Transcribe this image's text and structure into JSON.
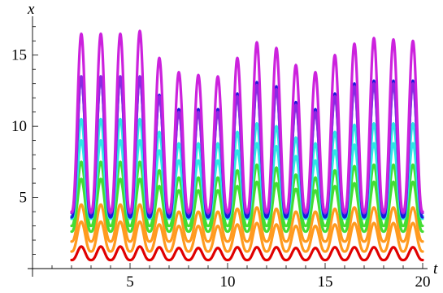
{
  "chart_data": {
    "type": "line",
    "title": "",
    "xlabel": "t",
    "ylabel": "x",
    "xlim": [
      0,
      20
    ],
    "ylim": [
      0,
      17.5
    ],
    "x_ticks": [
      5,
      10,
      15,
      20
    ],
    "y_ticks": [
      5,
      10,
      15
    ],
    "x_tick_labels": [
      "5",
      "10",
      "15",
      "20"
    ],
    "y_tick_labels": [
      "5",
      "10",
      "15"
    ],
    "grid": false,
    "legend": "none",
    "t_start": 2,
    "t_end": 20,
    "series": [
      {
        "color": "#e00000",
        "period": 1.0,
        "peak_times": [
          2.5,
          3.5,
          4.5,
          5.5,
          6.5,
          7.5,
          8.5,
          9.5,
          10.5,
          11.5,
          12.5,
          13.5,
          14.5,
          15.5,
          16.5,
          17.5,
          18.5,
          19.5
        ],
        "peak_values": [
          1.55,
          1.55,
          1.55,
          1.55,
          1.5,
          1.45,
          1.45,
          1.45,
          1.5,
          1.5,
          1.5,
          1.45,
          1.45,
          1.5,
          1.5,
          1.5,
          1.5,
          1.5
        ],
        "trough_values": [
          0.6,
          0.6,
          0.6,
          0.6,
          0.6,
          0.6,
          0.6,
          0.6,
          0.6,
          0.6,
          0.6,
          0.6,
          0.6,
          0.6,
          0.6,
          0.6,
          0.6,
          0.6
        ]
      },
      {
        "color": "#ff9a1f",
        "period": 1.0,
        "peak_times": [
          2.5,
          3.5,
          4.5,
          5.5,
          6.5,
          7.5,
          8.5,
          9.5,
          10.5,
          11.5,
          12.5,
          13.5,
          14.5,
          15.5,
          16.5,
          17.5,
          18.5,
          19.5
        ],
        "peak_values": [
          3.3,
          3.3,
          3.3,
          3.3,
          3.1,
          3.0,
          3.0,
          3.0,
          3.1,
          3.2,
          3.1,
          3.0,
          3.0,
          3.1,
          3.2,
          3.2,
          3.2,
          3.2
        ],
        "trough_values": [
          1.2,
          1.2,
          1.2,
          1.2,
          1.2,
          1.2,
          1.2,
          1.2,
          1.2,
          1.2,
          1.2,
          1.2,
          1.2,
          1.2,
          1.2,
          1.2,
          1.2,
          1.2
        ]
      },
      {
        "color": "#ff9a1f",
        "period": 1.0,
        "peak_times": [
          2.5,
          3.5,
          4.5,
          5.5,
          6.5,
          7.5,
          8.5,
          9.5,
          10.5,
          11.5,
          12.5,
          13.5,
          14.5,
          15.5,
          16.5,
          17.5,
          18.5,
          19.5
        ],
        "peak_values": [
          4.5,
          4.5,
          4.5,
          4.5,
          4.2,
          4.0,
          4.0,
          4.0,
          4.2,
          4.3,
          4.2,
          4.0,
          4.0,
          4.2,
          4.3,
          4.3,
          4.3,
          4.3
        ],
        "trough_values": [
          1.9,
          1.9,
          1.9,
          1.9,
          1.9,
          1.9,
          1.9,
          1.9,
          1.9,
          1.9,
          1.9,
          1.9,
          1.9,
          1.9,
          1.9,
          1.9,
          1.9,
          1.9
        ]
      },
      {
        "color": "#44dd33",
        "period": 1.0,
        "peak_times": [
          2.5,
          3.5,
          4.5,
          5.5,
          6.5,
          7.5,
          8.5,
          9.5,
          10.5,
          11.5,
          12.5,
          13.5,
          14.5,
          15.5,
          16.5,
          17.5,
          18.5,
          19.5
        ],
        "peak_values": [
          6.3,
          6.3,
          6.3,
          6.3,
          5.8,
          5.5,
          5.5,
          5.5,
          5.8,
          6.1,
          6.0,
          5.6,
          5.5,
          5.8,
          6.0,
          6.1,
          6.1,
          6.1
        ],
        "trough_values": [
          2.6,
          2.6,
          2.6,
          2.6,
          2.6,
          2.6,
          2.6,
          2.6,
          2.6,
          2.6,
          2.6,
          2.6,
          2.6,
          2.6,
          2.6,
          2.6,
          2.6,
          2.6
        ]
      },
      {
        "color": "#44dd33",
        "period": 1.0,
        "peak_times": [
          2.5,
          3.5,
          4.5,
          5.5,
          6.5,
          7.5,
          8.5,
          9.5,
          10.5,
          11.5,
          12.5,
          13.5,
          14.5,
          15.5,
          16.5,
          17.5,
          18.5,
          19.5
        ],
        "peak_values": [
          7.5,
          7.5,
          7.5,
          7.5,
          6.9,
          6.4,
          6.4,
          6.4,
          6.9,
          7.3,
          7.1,
          6.6,
          6.4,
          6.9,
          7.2,
          7.3,
          7.3,
          7.3
        ],
        "trough_values": [
          3.0,
          3.0,
          3.0,
          3.0,
          3.0,
          3.0,
          3.0,
          3.0,
          3.0,
          3.0,
          3.0,
          3.0,
          3.0,
          3.0,
          3.0,
          3.0,
          3.0,
          3.0
        ]
      },
      {
        "color": "#2ee6e6",
        "period": 1.0,
        "peak_times": [
          2.5,
          3.5,
          4.5,
          5.5,
          6.5,
          7.5,
          8.5,
          9.5,
          10.5,
          11.5,
          12.5,
          13.5,
          14.5,
          15.5,
          16.5,
          17.5,
          18.5,
          19.5
        ],
        "peak_values": [
          9.0,
          9.0,
          9.0,
          9.0,
          8.3,
          7.6,
          7.6,
          7.6,
          8.3,
          8.8,
          8.6,
          7.9,
          7.6,
          8.3,
          8.7,
          8.8,
          8.8,
          8.8
        ],
        "trough_values": [
          3.5,
          3.5,
          3.5,
          3.5,
          3.5,
          3.5,
          3.5,
          3.5,
          3.5,
          3.5,
          3.5,
          3.5,
          3.5,
          3.5,
          3.5,
          3.5,
          3.5,
          3.5
        ]
      },
      {
        "color": "#2ee6e6",
        "period": 1.0,
        "peak_times": [
          2.5,
          3.5,
          4.5,
          5.5,
          6.5,
          7.5,
          8.5,
          9.5,
          10.5,
          11.5,
          12.5,
          13.5,
          14.5,
          15.5,
          16.5,
          17.5,
          18.5,
          19.5
        ],
        "peak_values": [
          10.5,
          10.5,
          10.5,
          10.5,
          9.6,
          8.8,
          8.8,
          8.8,
          9.6,
          10.2,
          10.0,
          9.2,
          8.8,
          9.6,
          10.1,
          10.2,
          10.2,
          10.2
        ],
        "trough_values": [
          3.7,
          3.7,
          3.7,
          3.7,
          3.7,
          3.7,
          3.7,
          3.7,
          3.7,
          3.7,
          3.7,
          3.7,
          3.7,
          3.7,
          3.7,
          3.7,
          3.7,
          3.7
        ]
      },
      {
        "color": "#1a1adc",
        "period": 1.0,
        "peak_times": [
          2.5,
          3.5,
          4.5,
          5.5,
          6.5,
          7.5,
          8.5,
          9.5,
          10.5,
          11.5,
          12.5,
          13.5,
          14.5,
          15.5,
          16.5,
          17.5,
          18.5,
          19.5
        ],
        "peak_values": [
          13.5,
          13.5,
          13.5,
          13.5,
          12.2,
          11.2,
          11.2,
          11.2,
          12.3,
          13.1,
          12.8,
          11.7,
          11.2,
          12.3,
          13.0,
          13.2,
          13.2,
          13.2
        ],
        "trough_values": [
          3.6,
          3.6,
          3.6,
          3.6,
          3.6,
          3.6,
          3.6,
          3.6,
          3.6,
          3.6,
          3.6,
          3.6,
          3.6,
          3.6,
          3.6,
          3.6,
          3.6,
          3.6
        ]
      },
      {
        "color": "#8a2be2",
        "period": 1.0,
        "peak_times": [
          2.5,
          3.5,
          4.5,
          5.5,
          6.5,
          7.5,
          8.5,
          9.5,
          10.5,
          11.5,
          12.5,
          13.5,
          14.5,
          15.5,
          16.5,
          17.5,
          18.5,
          19.5
        ],
        "peak_values": [
          13.5,
          13.5,
          13.5,
          13.5,
          12.1,
          11.0,
          11.0,
          11.0,
          12.1,
          12.9,
          12.6,
          11.5,
          11.0,
          12.1,
          12.8,
          13.0,
          13.0,
          13.0
        ],
        "trough_values": [
          3.9,
          3.9,
          3.9,
          3.9,
          3.9,
          3.9,
          3.9,
          3.9,
          3.9,
          3.9,
          3.9,
          3.9,
          3.9,
          3.9,
          3.9,
          3.9,
          3.9,
          3.9
        ]
      },
      {
        "color": "#cc22dd",
        "period": 1.0,
        "peak_times": [
          2.5,
          3.5,
          4.5,
          5.5,
          6.5,
          7.5,
          8.5,
          9.5,
          10.5,
          11.5,
          12.5,
          13.5,
          14.5,
          15.5,
          16.5,
          17.5,
          18.5,
          19.5
        ],
        "peak_values": [
          16.5,
          16.5,
          16.5,
          16.7,
          14.8,
          13.8,
          13.6,
          13.5,
          14.8,
          15.9,
          15.5,
          14.3,
          13.8,
          15.0,
          15.8,
          16.2,
          16.1,
          16.0
        ],
        "trough_values": [
          4.0,
          4.0,
          4.0,
          4.0,
          4.0,
          4.0,
          4.0,
          4.0,
          4.0,
          4.0,
          4.0,
          4.0,
          4.0,
          4.0,
          4.0,
          4.0,
          4.0,
          4.0
        ]
      }
    ]
  }
}
